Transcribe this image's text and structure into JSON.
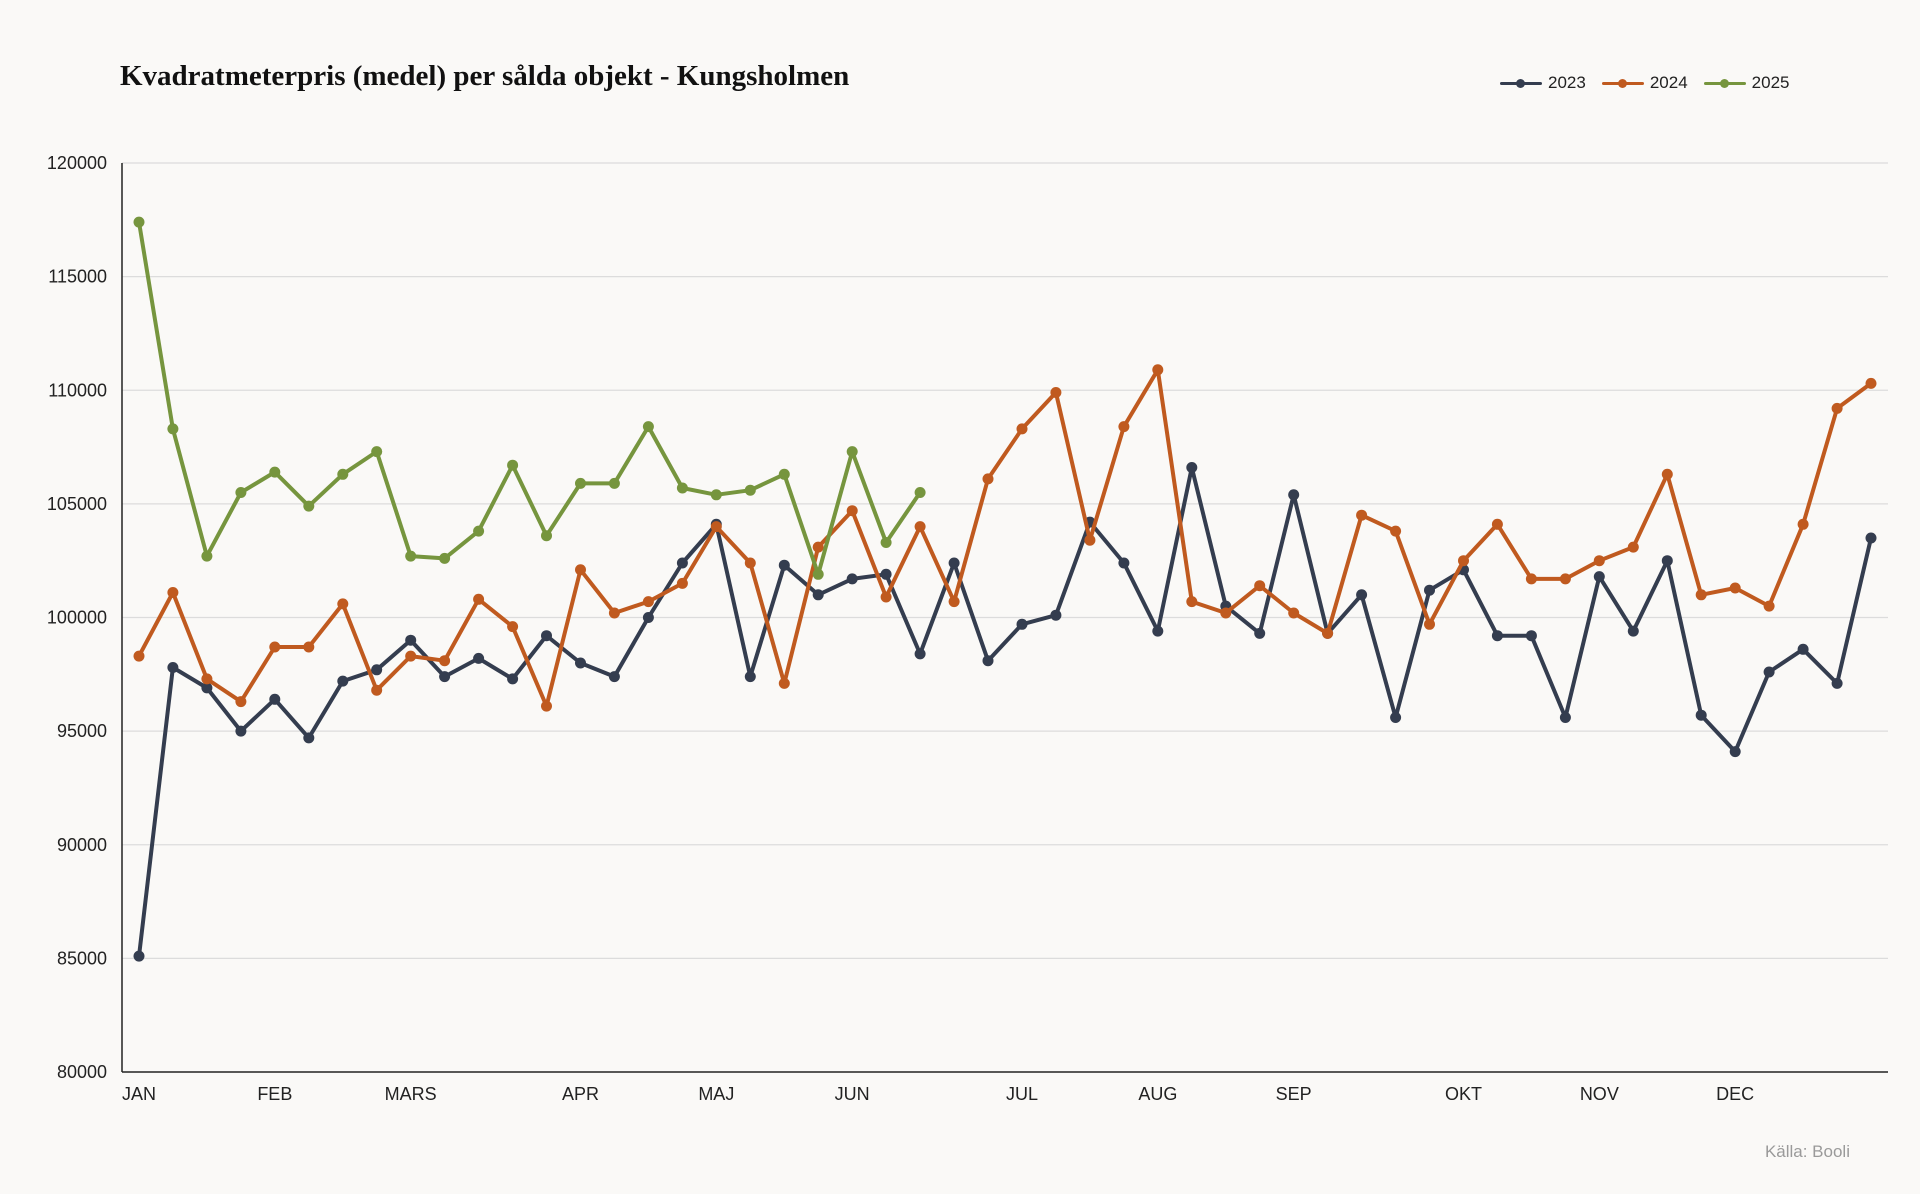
{
  "title": "Kvadratmeterpris (medel) per sålda objekt - Kungsholmen",
  "source": "Källa: Booli",
  "legend": [
    "2023",
    "2024",
    "2025"
  ],
  "chart_data": {
    "type": "line",
    "title": "Kvadratmeterpris (medel) per sålda objekt - Kungsholmen",
    "xlabel": "",
    "ylabel": "",
    "ylim": [
      80000,
      120000
    ],
    "y_ticks": [
      80000,
      85000,
      90000,
      95000,
      100000,
      105000,
      110000,
      115000,
      120000
    ],
    "x_range": [
      0.5,
      52.5
    ],
    "x_unit": "week",
    "month_ticks": [
      {
        "label": "JAN",
        "x": 1
      },
      {
        "label": "FEB",
        "x": 5
      },
      {
        "label": "MARS",
        "x": 9
      },
      {
        "label": "APR",
        "x": 14
      },
      {
        "label": "MAJ",
        "x": 18
      },
      {
        "label": "JUN",
        "x": 22
      },
      {
        "label": "JUL",
        "x": 27
      },
      {
        "label": "AUG",
        "x": 31
      },
      {
        "label": "SEP",
        "x": 35
      },
      {
        "label": "OKT",
        "x": 40
      },
      {
        "label": "NOV",
        "x": 44
      },
      {
        "label": "DEC",
        "x": 48
      }
    ],
    "grid": true,
    "legend_position": "top-right",
    "series": [
      {
        "name": "2023",
        "color": "#343d4f",
        "x": [
          1,
          2,
          3,
          4,
          5,
          6,
          7,
          8,
          9,
          10,
          11,
          12,
          13,
          14,
          15,
          16,
          17,
          18,
          19,
          20,
          21,
          22,
          23,
          24,
          25,
          26,
          27,
          28,
          29,
          30,
          31,
          32,
          33,
          34,
          35,
          36,
          37,
          38,
          39,
          40,
          41,
          42,
          43,
          44,
          45,
          46,
          47,
          48,
          49,
          50,
          51,
          52
        ],
        "values": [
          85100,
          97800,
          96900,
          95000,
          96400,
          94700,
          97200,
          97700,
          99000,
          97400,
          98200,
          97300,
          99200,
          98000,
          97400,
          100000,
          102400,
          104100,
          97400,
          102300,
          101000,
          101700,
          101900,
          98400,
          102400,
          98100,
          99700,
          100100,
          104200,
          102400,
          99400,
          106600,
          100500,
          99300,
          105400,
          99300,
          101000,
          95600,
          101200,
          102100,
          99200,
          99200,
          95600,
          101800,
          99400,
          102500,
          95700,
          94100,
          97600,
          98600,
          97100,
          103500
        ]
      },
      {
        "name": "2024",
        "color": "#c05a1f",
        "x": [
          1,
          2,
          3,
          4,
          5,
          6,
          7,
          8,
          9,
          10,
          11,
          12,
          13,
          14,
          15,
          16,
          17,
          18,
          19,
          20,
          21,
          22,
          23,
          24,
          25,
          26,
          27,
          28,
          29,
          30,
          31,
          32,
          33,
          34,
          35,
          36,
          37,
          38,
          39,
          40,
          41,
          42,
          43,
          44,
          45,
          46,
          47,
          48,
          49,
          50,
          51,
          52
        ],
        "values": [
          98300,
          101100,
          97300,
          96300,
          98700,
          98700,
          100600,
          96800,
          98300,
          98100,
          100800,
          99600,
          96100,
          102100,
          100200,
          100700,
          101500,
          104000,
          102400,
          97100,
          103100,
          104700,
          100900,
          104000,
          100700,
          106100,
          108300,
          109900,
          103400,
          108400,
          110900,
          100700,
          100200,
          101400,
          100200,
          99300,
          104500,
          103800,
          99700,
          102500,
          104100,
          101700,
          101700,
          102500,
          103100,
          106300,
          101000,
          101300,
          100500,
          104100,
          109200,
          110300
        ]
      },
      {
        "name": "2025",
        "color": "#76953e",
        "x": [
          1,
          2,
          3,
          4,
          5,
          6,
          7,
          8,
          9,
          10,
          11,
          12,
          13,
          14,
          15,
          16,
          17,
          18,
          19,
          20,
          21,
          22,
          23,
          24
        ],
        "values": [
          117400,
          108300,
          102700,
          105500,
          106400,
          104900,
          106300,
          107300,
          102700,
          102600,
          103800,
          106700,
          103600,
          105900,
          105900,
          108400,
          105700,
          105400,
          105600,
          106300,
          101900,
          107300,
          103300,
          105500
        ]
      }
    ]
  }
}
